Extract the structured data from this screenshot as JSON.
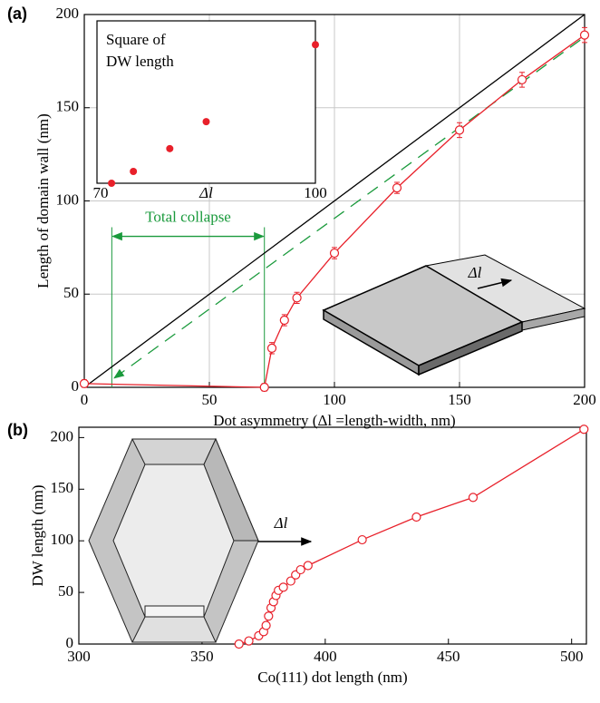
{
  "chart_data": [
    {
      "type": "line",
      "panel_label": "(a)",
      "xlabel": "Dot asymmetry  (Δl =length-width, nm)",
      "ylabel": "Length of domain wall (nm)",
      "xlim": [
        0,
        200
      ],
      "ylim": [
        0,
        200
      ],
      "xticks": [
        0,
        50,
        100,
        150,
        200
      ],
      "yticks": [
        0,
        50,
        100,
        150,
        200
      ],
      "grid": true,
      "series": [
        {
          "color": "#000000",
          "x": [
            0,
            200
          ],
          "values": [
            0,
            200
          ]
        },
        {
          "color": "#1a9a3c",
          "dash": true,
          "x": [
            12,
            200
          ],
          "values": [
            5,
            188
          ]
        },
        {
          "color": "#e8202a",
          "marker": "circle-open",
          "x": [
            0,
            72,
            75,
            80,
            85,
            100,
            125,
            150,
            175,
            200
          ],
          "values": [
            2,
            0,
            21,
            36,
            48,
            72,
            107,
            138,
            165,
            189
          ],
          "errors": [
            2,
            2,
            3,
            3,
            3,
            3,
            3,
            4,
            4,
            4
          ]
        }
      ],
      "annotation": {
        "text": "Total collapse",
        "x": [
          11,
          72
        ],
        "y": 81,
        "color": "#1a9a3c"
      },
      "schematic_label": "Δl",
      "inset": {
        "type": "scatter",
        "title_lines": [
          "Square of",
          "DW length"
        ],
        "xlabel": "Δl",
        "xlim": [
          70,
          100
        ],
        "ylim": [
          0,
          6075
        ],
        "xticks": [
          70,
          100
        ],
        "color": "#e8202a",
        "x": [
          72,
          75,
          80,
          85,
          100
        ],
        "values": [
          0,
          441,
          1296,
          2304,
          5184
        ]
      }
    },
    {
      "type": "line",
      "panel_label": "(b)",
      "xlabel": "Co(111) dot length (nm)",
      "ylabel": "DW length (nm)",
      "xlim": [
        300,
        506
      ],
      "ylim": [
        0,
        210
      ],
      "xticks": [
        300,
        350,
        400,
        450,
        500
      ],
      "yticks": [
        0,
        50,
        100,
        150,
        200
      ],
      "grid": false,
      "series": [
        {
          "color": "#e8202a",
          "marker": "circle-open",
          "x": [
            365,
            369,
            373,
            375,
            376,
            377,
            378,
            379,
            380,
            381,
            383,
            386,
            388,
            390,
            393,
            415,
            437,
            460,
            505
          ],
          "values": [
            0,
            3,
            8,
            12,
            18,
            27,
            35,
            41,
            47,
            52,
            55,
            61,
            67,
            72,
            76,
            101,
            123,
            142,
            208
          ]
        }
      ],
      "schematic_label": "Δl"
    }
  ]
}
